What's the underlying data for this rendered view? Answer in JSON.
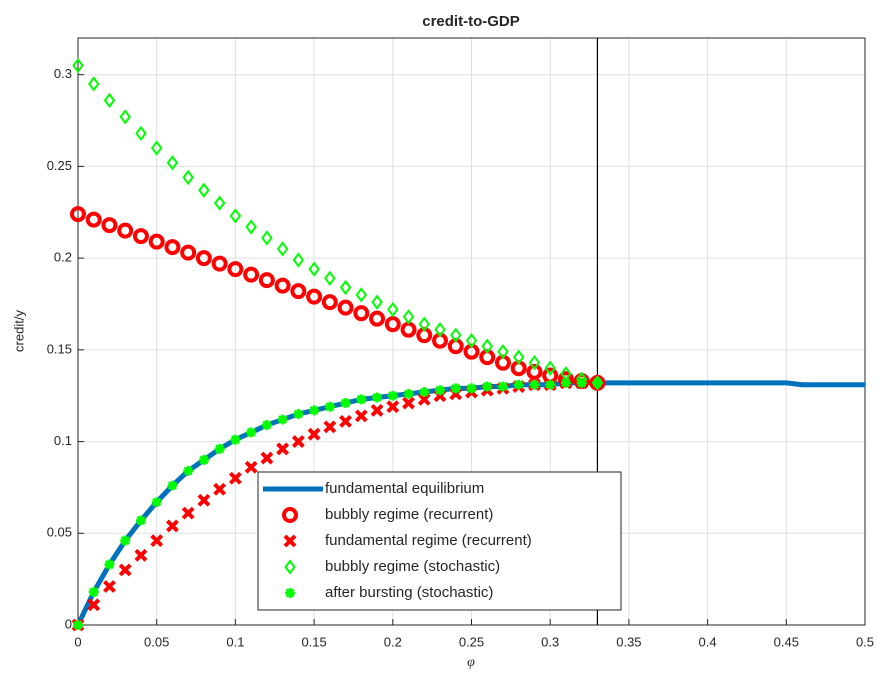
{
  "chart_data": {
    "type": "line",
    "title": "credit-to-GDP",
    "xlabel": "φ",
    "ylabel": "credit/y",
    "xlim": [
      0,
      0.5
    ],
    "ylim": [
      0,
      0.32
    ],
    "xticks": [
      0,
      0.05,
      0.1,
      0.15,
      0.2,
      0.25,
      0.3,
      0.35,
      0.4,
      0.45,
      0.5
    ],
    "yticks": [
      0,
      0.05,
      0.1,
      0.15,
      0.2,
      0.25,
      0.3
    ],
    "grid": true,
    "legend": "south",
    "vline": 0.33,
    "series": [
      {
        "name": "fundamental equilibrium",
        "color": "#0072bd",
        "marker": "line",
        "x": [
          0,
          0.01,
          0.02,
          0.03,
          0.04,
          0.05,
          0.06,
          0.07,
          0.08,
          0.09,
          0.1,
          0.11,
          0.12,
          0.13,
          0.14,
          0.15,
          0.16,
          0.17,
          0.18,
          0.19,
          0.2,
          0.21,
          0.22,
          0.23,
          0.24,
          0.25,
          0.26,
          0.27,
          0.28,
          0.29,
          0.3,
          0.31,
          0.32,
          0.33,
          0.34,
          0.35,
          0.36,
          0.37,
          0.38,
          0.39,
          0.4,
          0.41,
          0.42,
          0.43,
          0.44,
          0.45,
          0.46,
          0.47,
          0.48,
          0.49,
          0.5
        ],
        "values": [
          0,
          0.018,
          0.033,
          0.046,
          0.057,
          0.067,
          0.076,
          0.084,
          0.09,
          0.096,
          0.101,
          0.105,
          0.109,
          0.112,
          0.115,
          0.117,
          0.119,
          0.121,
          0.123,
          0.124,
          0.125,
          0.126,
          0.127,
          0.128,
          0.129,
          0.129,
          0.13,
          0.13,
          0.131,
          0.131,
          0.131,
          0.132,
          0.132,
          0.132,
          0.132,
          0.132,
          0.132,
          0.132,
          0.132,
          0.132,
          0.132,
          0.132,
          0.132,
          0.132,
          0.132,
          0.132,
          0.131,
          0.131,
          0.131,
          0.131,
          0.131
        ]
      },
      {
        "name": "bubbly regime (recurrent)",
        "color": "#ff0000",
        "marker": "o",
        "x": [
          0,
          0.01,
          0.02,
          0.03,
          0.04,
          0.05,
          0.06,
          0.07,
          0.08,
          0.09,
          0.1,
          0.11,
          0.12,
          0.13,
          0.14,
          0.15,
          0.16,
          0.17,
          0.18,
          0.19,
          0.2,
          0.21,
          0.22,
          0.23,
          0.24,
          0.25,
          0.26,
          0.27,
          0.28,
          0.29,
          0.3,
          0.31,
          0.32,
          0.33
        ],
        "values": [
          0.224,
          0.221,
          0.218,
          0.215,
          0.212,
          0.209,
          0.206,
          0.203,
          0.2,
          0.197,
          0.194,
          0.191,
          0.188,
          0.185,
          0.182,
          0.179,
          0.176,
          0.173,
          0.17,
          0.167,
          0.164,
          0.161,
          0.158,
          0.155,
          0.152,
          0.149,
          0.146,
          0.143,
          0.14,
          0.138,
          0.136,
          0.134,
          0.133,
          0.132
        ]
      },
      {
        "name": "fundamental regime (recurrent)",
        "color": "#ff0000",
        "marker": "x",
        "x": [
          0,
          0.01,
          0.02,
          0.03,
          0.04,
          0.05,
          0.06,
          0.07,
          0.08,
          0.09,
          0.1,
          0.11,
          0.12,
          0.13,
          0.14,
          0.15,
          0.16,
          0.17,
          0.18,
          0.19,
          0.2,
          0.21,
          0.22,
          0.23,
          0.24,
          0.25,
          0.26,
          0.27,
          0.28,
          0.29,
          0.3,
          0.31,
          0.32,
          0.33
        ],
        "values": [
          0,
          0.011,
          0.021,
          0.03,
          0.038,
          0.046,
          0.054,
          0.061,
          0.068,
          0.074,
          0.08,
          0.086,
          0.091,
          0.096,
          0.1,
          0.104,
          0.108,
          0.111,
          0.114,
          0.117,
          0.119,
          0.121,
          0.123,
          0.125,
          0.126,
          0.127,
          0.128,
          0.129,
          0.13,
          0.131,
          0.131,
          0.132,
          0.132,
          0.132
        ]
      },
      {
        "name": "bubbly regime (stochastic)",
        "color": "#00ff00",
        "marker": "d",
        "x": [
          0,
          0.01,
          0.02,
          0.03,
          0.04,
          0.05,
          0.06,
          0.07,
          0.08,
          0.09,
          0.1,
          0.11,
          0.12,
          0.13,
          0.14,
          0.15,
          0.16,
          0.17,
          0.18,
          0.19,
          0.2,
          0.21,
          0.22,
          0.23,
          0.24,
          0.25,
          0.26,
          0.27,
          0.28,
          0.29,
          0.3,
          0.31,
          0.32,
          0.33
        ],
        "values": [
          0.305,
          0.295,
          0.286,
          0.277,
          0.268,
          0.26,
          0.252,
          0.244,
          0.237,
          0.23,
          0.223,
          0.217,
          0.211,
          0.205,
          0.199,
          0.194,
          0.189,
          0.184,
          0.18,
          0.176,
          0.172,
          0.168,
          0.164,
          0.161,
          0.158,
          0.155,
          0.152,
          0.149,
          0.146,
          0.143,
          0.14,
          0.137,
          0.134,
          0.132
        ]
      },
      {
        "name": "after bursting (stochastic)",
        "color": "#00ff00",
        "marker": "*",
        "x": [
          0,
          0.01,
          0.02,
          0.03,
          0.04,
          0.05,
          0.06,
          0.07,
          0.08,
          0.09,
          0.1,
          0.11,
          0.12,
          0.13,
          0.14,
          0.15,
          0.16,
          0.17,
          0.18,
          0.19,
          0.2,
          0.21,
          0.22,
          0.23,
          0.24,
          0.25,
          0.26,
          0.27,
          0.28,
          0.29,
          0.3,
          0.31,
          0.32,
          0.33
        ],
        "values": [
          0,
          0.018,
          0.033,
          0.046,
          0.057,
          0.067,
          0.076,
          0.084,
          0.09,
          0.096,
          0.101,
          0.105,
          0.109,
          0.112,
          0.115,
          0.117,
          0.119,
          0.121,
          0.123,
          0.124,
          0.125,
          0.126,
          0.127,
          0.128,
          0.129,
          0.129,
          0.13,
          0.13,
          0.131,
          0.131,
          0.131,
          0.132,
          0.132,
          0.132
        ]
      }
    ]
  }
}
